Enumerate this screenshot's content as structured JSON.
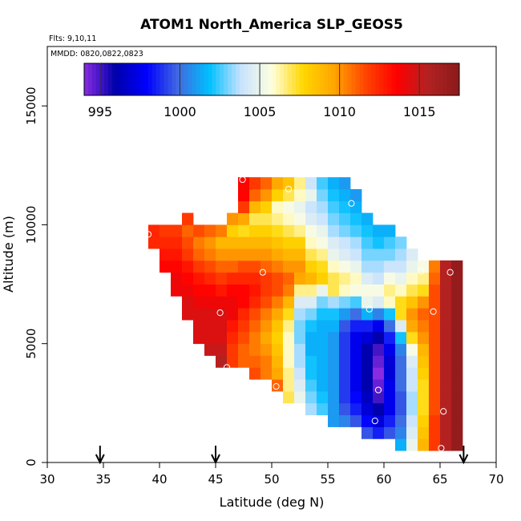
{
  "chart_data": {
    "type": "heatmap",
    "title": "ATOM1 North_America SLP_GEOS5",
    "flights_label": "Flts: 9,10,11",
    "dates_label": "MMDD: 0820,0822,0823",
    "xlabel": "Latitude (deg N)",
    "ylabel": "Altitude (m)",
    "xlim": [
      30,
      70
    ],
    "ylim": [
      0,
      17500
    ],
    "x_ticks": [
      30,
      35,
      40,
      45,
      50,
      55,
      60,
      65,
      70
    ],
    "x_tick_labels": [
      "30",
      "35",
      "40",
      "45",
      "50",
      "55",
      "60",
      "65",
      "70"
    ],
    "y_ticks": [
      0,
      5000,
      10000,
      15000
    ],
    "y_tick_labels": [
      "0",
      "5000",
      "10000",
      "15000"
    ],
    "grid": false,
    "colorbar": {
      "min": 994,
      "max": 1017.5,
      "ticks": [
        995,
        1000,
        1005,
        1010,
        1015
      ],
      "tick_labels": [
        "995",
        "1000",
        "1005",
        "1010",
        "1015"
      ],
      "colors": [
        "#8a2be2",
        "#0000aa",
        "#0000ff",
        "#4169e1",
        "#00bfff",
        "#c6e2ff",
        "#ffffe0",
        "#ffd700",
        "#ffa500",
        "#ff4500",
        "#ff0000",
        "#b22222",
        "#8b1a1a"
      ]
    },
    "bin_size": {
      "lat": 1.0,
      "alt": 500
    },
    "columns": [
      {
        "lat": 39.5,
        "alt_start": 9000,
        "values": [
          1012.5,
          1012.5
        ]
      },
      {
        "lat": 40.5,
        "alt_start": 8000,
        "values": [
          1013.5,
          1013.0,
          1012.5,
          1012.0
        ]
      },
      {
        "lat": 41.5,
        "alt_start": 7000,
        "values": [
          1014.0,
          1014.0,
          1013.5,
          1013.0,
          1012.5,
          1012.0
        ]
      },
      {
        "lat": 42.5,
        "alt_start": 6000,
        "values": [
          1014.5,
          1014.5,
          1014.0,
          1013.5,
          1013.0,
          1012.0,
          1011.5,
          1011.0,
          1012.0
        ]
      },
      {
        "lat": 43.5,
        "alt_start": 5000,
        "values": [
          1014.5,
          1014.5,
          1014.5,
          1014.0,
          1013.5,
          1013.0,
          1012.0,
          1011.0,
          1010.5,
          1011.5
        ]
      },
      {
        "lat": 44.5,
        "alt_start": 4500,
        "values": [
          1015.0,
          1014.5,
          1014.5,
          1014.5,
          1014.0,
          1013.5,
          1012.5,
          1011.5,
          1010.5,
          1010.0,
          1011.0
        ]
      },
      {
        "lat": 45.5,
        "alt_start": 4000,
        "values": [
          1015.5,
          1015.0,
          1014.5,
          1014.5,
          1014.5,
          1014.0,
          1013.0,
          1012.0,
          1011.0,
          1010.0,
          1009.0,
          1010.5
        ]
      },
      {
        "lat": 46.5,
        "alt_start": 4000,
        "values": [
          1012.0,
          1012.0,
          1012.5,
          1013.0,
          1014.0,
          1014.0,
          1013.5,
          1012.5,
          1011.0,
          1010.0,
          1009.0,
          1008.0,
          1010.0
        ]
      },
      {
        "lat": 47.5,
        "alt_start": 4000,
        "values": [
          1011.0,
          1011.0,
          1011.5,
          1012.0,
          1012.5,
          1013.5,
          1013.5,
          1012.5,
          1011.5,
          1010.0,
          1009.0,
          1007.5,
          1009.5,
          1012.0,
          1013.5,
          1013.5
        ]
      },
      {
        "lat": 48.5,
        "alt_start": 3500,
        "values": [
          1011.5,
          1011.0,
          1010.5,
          1010.5,
          1011.0,
          1011.5,
          1012.5,
          1013.0,
          1012.5,
          1011.5,
          1010.0,
          1009.0,
          1008.0,
          1007.0,
          1009.0,
          1011.0,
          1012.0
        ]
      },
      {
        "lat": 49.5,
        "alt_start": 3500,
        "values": [
          1010.5,
          1010.5,
          1010.0,
          1009.5,
          1010.0,
          1010.5,
          1011.5,
          1012.0,
          1012.0,
          1011.0,
          1010.0,
          1009.0,
          1008.0,
          1007.0,
          1008.0,
          1010.0,
          1011.0
        ]
      },
      {
        "lat": 50.5,
        "alt_start": 3000,
        "values": [
          1011.0,
          1009.5,
          1009.0,
          1008.5,
          1008.0,
          1008.5,
          1009.5,
          1010.5,
          1011.5,
          1011.5,
          1010.5,
          1009.5,
          1008.5,
          1007.5,
          1006.5,
          1006.0,
          1008.0,
          1009.5
        ]
      },
      {
        "lat": 51.5,
        "alt_start": 2500,
        "values": [
          1007.0,
          1006.5,
          1006.5,
          1006.0,
          1006.0,
          1006.0,
          1006.5,
          1007.5,
          1009.0,
          1010.5,
          1011.0,
          1010.0,
          1009.0,
          1008.0,
          1007.0,
          1006.0,
          1005.5,
          1007.0,
          1008.5
        ]
      },
      {
        "lat": 52.5,
        "alt_start": 2500,
        "values": [
          1005.0,
          1004.5,
          1004.0,
          1003.5,
          1003.5,
          1003.0,
          1003.0,
          1003.5,
          1004.5,
          1006.5,
          1009.5,
          1010.0,
          1009.0,
          1008.0,
          1006.5,
          1005.5,
          1005.0,
          1006.0,
          1006.5
        ]
      },
      {
        "lat": 53.5,
        "alt_start": 2000,
        "values": [
          1003.5,
          1003.0,
          1002.5,
          1002.0,
          1002.0,
          1001.5,
          1001.5,
          1002.0,
          1003.0,
          1004.5,
          1006.5,
          1009.0,
          1008.0,
          1007.0,
          1006.0,
          1005.5,
          1004.5,
          1004.0,
          1005.0,
          1004.0
        ]
      },
      {
        "lat": 54.5,
        "alt_start": 2000,
        "values": [
          1002.5,
          1002.0,
          1001.5,
          1001.5,
          1001.5,
          1001.5,
          1001.5,
          1001.5,
          1002.0,
          1003.0,
          1005.0,
          1008.0,
          1007.5,
          1006.5,
          1005.5,
          1005.0,
          1004.0,
          1003.5,
          1003.0,
          1002.5
        ]
      },
      {
        "lat": 55.5,
        "alt_start": 1500,
        "values": [
          1001.0,
          1001.0,
          1001.0,
          1001.0,
          1001.0,
          1001.0,
          1001.0,
          1001.0,
          1001.5,
          1002.0,
          1003.5,
          1007.0,
          1007.0,
          1006.0,
          1005.0,
          1004.5,
          1003.5,
          1003.0,
          1002.5,
          1002.0,
          1001.5
        ]
      },
      {
        "lat": 56.5,
        "alt_start": 1500,
        "values": [
          1000.5,
          999.5,
          999.0,
          999.0,
          999.0,
          999.0,
          999.0,
          999.0,
          999.5,
          1001.0,
          1003.0,
          1006.0,
          1006.5,
          1005.5,
          1004.5,
          1004.0,
          1003.0,
          1002.5,
          1002.0,
          1001.5,
          1001.0
        ]
      },
      {
        "lat": 57.5,
        "alt_start": 1500,
        "values": [
          999.5,
          998.5,
          998.0,
          997.5,
          997.5,
          997.5,
          997.5,
          997.5,
          998.5,
          1000.0,
          1002.5,
          1005.5,
          1006.0,
          1005.0,
          1004.0,
          1003.5,
          1002.5,
          1002.0,
          1001.5,
          1001.0
        ]
      },
      {
        "lat": 58.5,
        "alt_start": 1000,
        "values": [
          999.5,
          998.0,
          997.0,
          996.5,
          996.0,
          996.0,
          996.0,
          996.0,
          997.0,
          998.5,
          1001.5,
          1005.0,
          1005.5,
          1004.5,
          1003.5,
          1003.0,
          1002.5,
          1002.0,
          1001.5
        ]
      },
      {
        "lat": 59.5,
        "alt_start": 1000,
        "values": [
          998.5,
          997.0,
          996.0,
          995.0,
          994.5,
          994.0,
          994.5,
          995.0,
          996.0,
          997.5,
          1000.5,
          1004.5,
          1005.5,
          1004.0,
          1003.5,
          1003.0,
          1002.0,
          1001.5
        ]
      },
      {
        "lat": 60.5,
        "alt_start": 1000,
        "values": [
          999.5,
          998.5,
          997.5,
          997.5,
          997.5,
          997.0,
          997.0,
          997.5,
          998.5,
          1000.0,
          1002.0,
          1006.0,
          1006.5,
          1005.5,
          1004.0,
          1003.0,
          1002.5,
          1001.5
        ]
      },
      {
        "lat": 61.5,
        "alt_start": 500,
        "values": [
          1001.5,
          1000.5,
          1000.0,
          999.5,
          999.5,
          1000.0,
          1000.0,
          1000.0,
          1000.5,
          1002.0,
          1004.5,
          1007.5,
          1007.5,
          1006.0,
          1005.0,
          1004.0,
          1003.5,
          1003.0
        ]
      },
      {
        "lat": 62.5,
        "alt_start": 500,
        "values": [
          1005.0,
          1004.5,
          1004.0,
          1003.5,
          1003.5,
          1004.0,
          1004.0,
          1004.5,
          1005.5,
          1007.5,
          1009.5,
          1010.0,
          1008.5,
          1007.0,
          1006.0,
          1005.0,
          1004.5
        ]
      },
      {
        "lat": 63.5,
        "alt_start": 500,
        "values": [
          1009.0,
          1008.5,
          1008.0,
          1007.5,
          1007.5,
          1007.5,
          1008.0,
          1008.5,
          1009.0,
          1010.0,
          1010.5,
          1011.0,
          1010.0,
          1007.5,
          1006.5,
          1005.5
        ]
      },
      {
        "lat": 64.5,
        "alt_start": 500,
        "values": [
          1012.0,
          1012.0,
          1012.0,
          1011.5,
          1011.5,
          1011.5,
          1011.5,
          1011.5,
          1011.5,
          1011.5,
          1011.5,
          1011.5,
          1011.5,
          1011.5,
          1011.0,
          1010.5
        ]
      },
      {
        "lat": 65.5,
        "alt_start": 500,
        "values": [
          1015.5,
          1015.5,
          1015.5,
          1015.5,
          1015.5,
          1015.5,
          1015.5,
          1015.5,
          1015.5,
          1015.5,
          1015.5,
          1015.5,
          1015.5,
          1015.5,
          1015.5,
          1015.5
        ]
      },
      {
        "lat": 66.5,
        "alt_start": 500,
        "values": [
          1017.0,
          1017.0,
          1017.0,
          1017.0,
          1017.0,
          1017.0,
          1017.0,
          1017.0,
          1017.0,
          1017.0,
          1017.0,
          1017.0,
          1017.0,
          1017.0,
          1017.0,
          1017.0
        ]
      }
    ],
    "circles": [
      {
        "lat": 47.4,
        "alt": 11900
      },
      {
        "lat": 42.5,
        "alt": 10850
      },
      {
        "lat": 51.5,
        "alt": 11500
      },
      {
        "lat": 57.1,
        "alt": 10900
      },
      {
        "lat": 39.0,
        "alt": 9600
      },
      {
        "lat": 49.2,
        "alt": 8000
      },
      {
        "lat": 63.3,
        "alt": 8050
      },
      {
        "lat": 65.9,
        "alt": 8000
      },
      {
        "lat": 45.4,
        "alt": 6300
      },
      {
        "lat": 58.7,
        "alt": 6450
      },
      {
        "lat": 64.4,
        "alt": 6350
      },
      {
        "lat": 46.0,
        "alt": 4000
      },
      {
        "lat": 50.4,
        "alt": 3200
      },
      {
        "lat": 59.5,
        "alt": 3050
      },
      {
        "lat": 65.3,
        "alt": 2150
      },
      {
        "lat": 59.2,
        "alt": 1750
      },
      {
        "lat": 65.1,
        "alt": 600
      }
    ],
    "arrows": [
      34.7,
      45.0,
      67.1
    ]
  }
}
